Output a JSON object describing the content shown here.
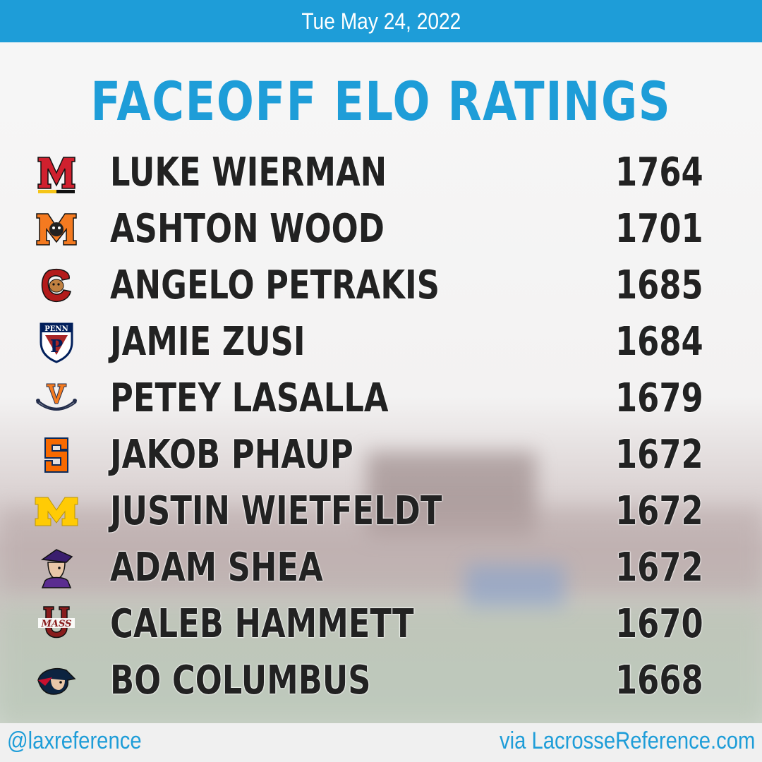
{
  "header": {
    "date": "Tue May 24, 2022"
  },
  "title": "FACEOFF ELO RATINGS",
  "rankings": [
    {
      "name": "LUKE WIERMAN",
      "rating": "1764",
      "logo_icon": "maryland-m-logo-icon"
    },
    {
      "name": "ASHTON WOOD",
      "rating": "1701",
      "logo_icon": "mercer-m-bear-logo-icon"
    },
    {
      "name": "ANGELO PETRAKIS",
      "rating": "1685",
      "logo_icon": "cornell-bear-logo-icon"
    },
    {
      "name": "JAMIE ZUSI",
      "rating": "1684",
      "logo_icon": "penn-shield-logo-icon",
      "logo_text": "PENN"
    },
    {
      "name": "PETEY LASALLA",
      "rating": "1679",
      "logo_icon": "virginia-v-sabres-logo-icon"
    },
    {
      "name": "JAKOB PHAUP",
      "rating": "1672",
      "logo_icon": "syracuse-s-logo-icon"
    },
    {
      "name": "JUSTIN WIETFELDT",
      "rating": "1672",
      "logo_icon": "michigan-m-logo-icon"
    },
    {
      "name": "ADAM SHEA",
      "rating": "1672",
      "logo_icon": "colonial-patriot-logo-icon"
    },
    {
      "name": "CALEB HAMMETT",
      "rating": "1670",
      "logo_icon": "umass-logo-icon",
      "logo_text": "MASS"
    },
    {
      "name": "BO COLUMBUS",
      "rating": "1668",
      "logo_icon": "patriot-head-logo-icon"
    }
  ],
  "footer": {
    "handle": "@laxreference",
    "source": "via LacrosseReference.com"
  },
  "colors": {
    "accent": "#1e9dd8",
    "text": "#222222"
  }
}
